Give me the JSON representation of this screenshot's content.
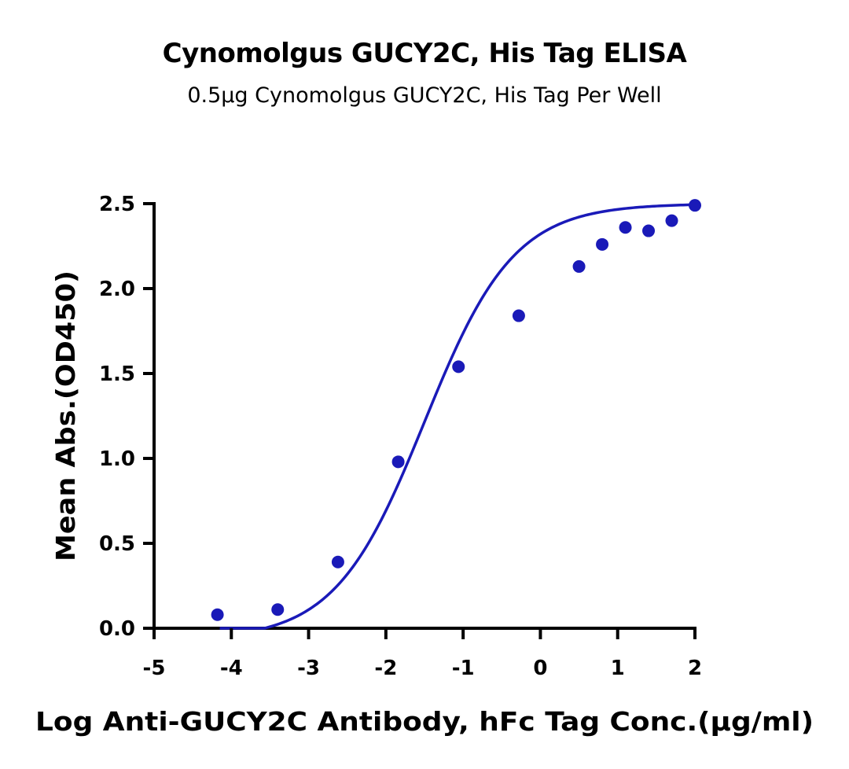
{
  "chart_data": {
    "type": "scatter",
    "title": "Cynomolgus GUCY2C, His Tag ELISA",
    "subtitle": "0.5μg Cynomolgus GUCY2C, His Tag Per Well",
    "xlabel": "Log Anti-GUCY2C Antibody, hFc Tag Conc.(μg/ml)",
    "ylabel": "Mean Abs.(OD450)",
    "xlim": [
      -5,
      2
    ],
    "ylim": [
      0,
      2.5
    ],
    "x_ticks": [
      "-5",
      "-4",
      "-3",
      "-2",
      "-1",
      "0",
      "1",
      "2"
    ],
    "y_ticks": [
      "0.0",
      "0.5",
      "1.0",
      "1.5",
      "2.0",
      "2.5"
    ],
    "grid": false,
    "color": "#1a1ab8",
    "series": [
      {
        "points": [
          {
            "x": -4.18,
            "y": 0.08
          },
          {
            "x": -3.4,
            "y": 0.11
          },
          {
            "x": -2.62,
            "y": 0.39
          },
          {
            "x": -1.84,
            "y": 0.98
          },
          {
            "x": -1.06,
            "y": 1.54
          },
          {
            "x": -0.28,
            "y": 1.84
          },
          {
            "x": 0.5,
            "y": 2.13
          },
          {
            "x": 0.8,
            "y": 2.26
          },
          {
            "x": 1.1,
            "y": 2.36
          },
          {
            "x": 1.4,
            "y": 2.34
          },
          {
            "x": 1.7,
            "y": 2.4
          },
          {
            "x": 2.0,
            "y": 2.49
          }
        ],
        "fit": {
          "model": "4PL",
          "bottom": -0.07,
          "top": 2.5,
          "logEC50": -1.5,
          "hill": 0.75,
          "x_range": [
            -4.15,
            2.0
          ]
        }
      }
    ]
  }
}
